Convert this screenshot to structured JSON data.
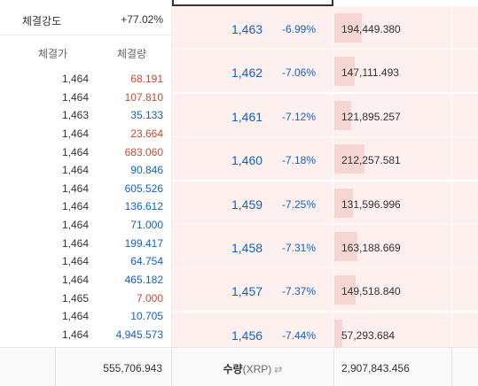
{
  "strength": {
    "label": "체결강도",
    "value": "+77.02%"
  },
  "ticks_header": {
    "price": "체결가",
    "volume": "체결량"
  },
  "ticks": [
    {
      "price": "1,464",
      "volume": "68.191",
      "side": "sell"
    },
    {
      "price": "1,464",
      "volume": "107.810",
      "side": "sell"
    },
    {
      "price": "1,463",
      "volume": "35.133",
      "side": "buy"
    },
    {
      "price": "1,464",
      "volume": "23.664",
      "side": "sell"
    },
    {
      "price": "1,464",
      "volume": "683.060",
      "side": "sell"
    },
    {
      "price": "1,464",
      "volume": "90.846",
      "side": "buy"
    },
    {
      "price": "1,464",
      "volume": "605.526",
      "side": "buy"
    },
    {
      "price": "1,464",
      "volume": "136.612",
      "side": "buy"
    },
    {
      "price": "1,464",
      "volume": "71.000",
      "side": "buy"
    },
    {
      "price": "1,464",
      "volume": "199.417",
      "side": "buy"
    },
    {
      "price": "1,464",
      "volume": "64.754",
      "side": "buy"
    },
    {
      "price": "1,464",
      "volume": "465.182",
      "side": "buy"
    },
    {
      "price": "1,465",
      "volume": "7.000",
      "side": "sell"
    },
    {
      "price": "1,464",
      "volume": "10.705",
      "side": "buy"
    },
    {
      "price": "1,464",
      "volume": "4,945.573",
      "side": "buy"
    }
  ],
  "asks": [
    {
      "price": "1,463",
      "change": "-6.99%",
      "quantity": "194,449.380",
      "depth": 0.92
    },
    {
      "price": "1,462",
      "change": "-7.06%",
      "quantity": "147,111.493",
      "depth": 0.69
    },
    {
      "price": "1,461",
      "change": "-7.12%",
      "quantity": "121,895.257",
      "depth": 0.57
    },
    {
      "price": "1,460",
      "change": "-7.18%",
      "quantity": "212,257.581",
      "depth": 1.0
    },
    {
      "price": "1,459",
      "change": "-7.25%",
      "quantity": "131,596.996",
      "depth": 0.62
    },
    {
      "price": "1,458",
      "change": "-7.31%",
      "quantity": "163,188.669",
      "depth": 0.77
    },
    {
      "price": "1,457",
      "change": "-7.37%",
      "quantity": "149,518.840",
      "depth": 0.7
    },
    {
      "price": "1,456",
      "change": "-7.44%",
      "quantity": "57,293.684",
      "depth": 0.27
    }
  ],
  "footer": {
    "total_left": "555,706.943",
    "qty_label": "수량",
    "unit": "(XRP)",
    "swap_icon": "swap-icon",
    "total_right": "2,907,843.456"
  },
  "colors": {
    "buy": "#1261c4",
    "sell": "#c84a31",
    "ask_bg": "#fdf0ef",
    "depth_bar": "#f6d6d2"
  }
}
